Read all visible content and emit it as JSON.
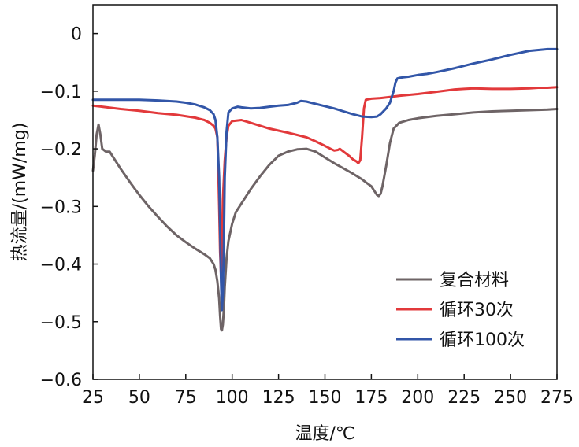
{
  "chart_data": {
    "type": "line",
    "title": "",
    "xlabel": "温度/℃",
    "ylabel": "热流量/(mW/mg)",
    "xlim": [
      25,
      275
    ],
    "ylim": [
      -0.6,
      0.05
    ],
    "xticks": [
      25,
      50,
      75,
      100,
      125,
      150,
      175,
      200,
      225,
      250,
      275
    ],
    "yticks": [
      0,
      -0.1,
      -0.2,
      -0.3,
      -0.4,
      -0.5,
      -0.6
    ],
    "ytick_labels": [
      "0",
      "−0.1",
      "−0.2",
      "−0.3",
      "−0.4",
      "−0.5",
      "−0.6"
    ],
    "grid": false,
    "legend_position": "bottom-right",
    "series": [
      {
        "name": "复合材料",
        "color": "#6e6466",
        "x": [
          25,
          26,
          27,
          28,
          29,
          30,
          32,
          34,
          36,
          40,
          45,
          50,
          55,
          60,
          65,
          70,
          75,
          80,
          85,
          88,
          90,
          91,
          92,
          93,
          93.5,
          94,
          94.5,
          95,
          95.5,
          96,
          97,
          98,
          100,
          102,
          105,
          110,
          115,
          120,
          125,
          130,
          135,
          140,
          145,
          150,
          155,
          160,
          165,
          170,
          172,
          175,
          177,
          178,
          179,
          180,
          181,
          183,
          185,
          187,
          190,
          195,
          200,
          210,
          220,
          230,
          240,
          250,
          260,
          270,
          275
        ],
        "y": [
          -0.238,
          -0.21,
          -0.175,
          -0.158,
          -0.175,
          -0.2,
          -0.205,
          -0.205,
          -0.215,
          -0.235,
          -0.258,
          -0.28,
          -0.3,
          -0.318,
          -0.335,
          -0.35,
          -0.362,
          -0.373,
          -0.383,
          -0.39,
          -0.4,
          -0.41,
          -0.43,
          -0.46,
          -0.49,
          -0.513,
          -0.515,
          -0.505,
          -0.48,
          -0.44,
          -0.39,
          -0.36,
          -0.33,
          -0.31,
          -0.295,
          -0.27,
          -0.248,
          -0.228,
          -0.212,
          -0.205,
          -0.201,
          -0.2,
          -0.205,
          -0.215,
          -0.225,
          -0.234,
          -0.243,
          -0.253,
          -0.258,
          -0.265,
          -0.275,
          -0.28,
          -0.282,
          -0.278,
          -0.265,
          -0.23,
          -0.19,
          -0.165,
          -0.155,
          -0.15,
          -0.147,
          -0.143,
          -0.14,
          -0.137,
          -0.135,
          -0.134,
          -0.133,
          -0.132,
          -0.131
        ]
      },
      {
        "name": "循环30次",
        "color": "#e2393b",
        "x": [
          25,
          30,
          40,
          50,
          60,
          70,
          80,
          85,
          88,
          90,
          91,
          92,
          92.5,
          93,
          93.5,
          94,
          94.5,
          95,
          96,
          97,
          98,
          100,
          105,
          110,
          120,
          130,
          140,
          145,
          150,
          153,
          155,
          157,
          158,
          160,
          163,
          165,
          167,
          168,
          169,
          170,
          171,
          172,
          175,
          180,
          185,
          190,
          200,
          210,
          220,
          225,
          230,
          240,
          250,
          260,
          265,
          270,
          275
        ],
        "y": [
          -0.125,
          -0.127,
          -0.131,
          -0.134,
          -0.138,
          -0.141,
          -0.146,
          -0.15,
          -0.155,
          -0.16,
          -0.165,
          -0.18,
          -0.23,
          -0.3,
          -0.38,
          -0.42,
          -0.37,
          -0.29,
          -0.22,
          -0.18,
          -0.16,
          -0.152,
          -0.15,
          -0.155,
          -0.165,
          -0.172,
          -0.18,
          -0.187,
          -0.195,
          -0.2,
          -0.203,
          -0.202,
          -0.2,
          -0.205,
          -0.212,
          -0.218,
          -0.222,
          -0.225,
          -0.22,
          -0.18,
          -0.13,
          -0.115,
          -0.113,
          -0.112,
          -0.11,
          -0.108,
          -0.105,
          -0.101,
          -0.097,
          -0.096,
          -0.095,
          -0.096,
          -0.096,
          -0.095,
          -0.094,
          -0.094,
          -0.093
        ]
      },
      {
        "name": "循环100次",
        "color": "#3256a8",
        "x": [
          25,
          30,
          40,
          50,
          60,
          70,
          75,
          80,
          85,
          88,
          90,
          91,
          92,
          93,
          93.5,
          94,
          94.5,
          95,
          95.5,
          96,
          97,
          98,
          100,
          103,
          105,
          110,
          115,
          120,
          125,
          130,
          135,
          137,
          140,
          145,
          150,
          155,
          160,
          165,
          170,
          175,
          178,
          180,
          183,
          185,
          187,
          188,
          189,
          190,
          192,
          195,
          200,
          205,
          210,
          220,
          230,
          240,
          250,
          260,
          270,
          275
        ],
        "y": [
          -0.115,
          -0.115,
          -0.115,
          -0.115,
          -0.116,
          -0.118,
          -0.12,
          -0.123,
          -0.128,
          -0.133,
          -0.14,
          -0.15,
          -0.18,
          -0.25,
          -0.34,
          -0.43,
          -0.48,
          -0.45,
          -0.37,
          -0.25,
          -0.17,
          -0.137,
          -0.13,
          -0.127,
          -0.128,
          -0.13,
          -0.129,
          -0.127,
          -0.125,
          -0.124,
          -0.12,
          -0.117,
          -0.118,
          -0.122,
          -0.126,
          -0.13,
          -0.135,
          -0.14,
          -0.144,
          -0.145,
          -0.144,
          -0.14,
          -0.13,
          -0.12,
          -0.1,
          -0.085,
          -0.078,
          -0.077,
          -0.076,
          -0.075,
          -0.072,
          -0.07,
          -0.067,
          -0.06,
          -0.052,
          -0.045,
          -0.037,
          -0.03,
          -0.027,
          -0.027
        ]
      }
    ]
  }
}
